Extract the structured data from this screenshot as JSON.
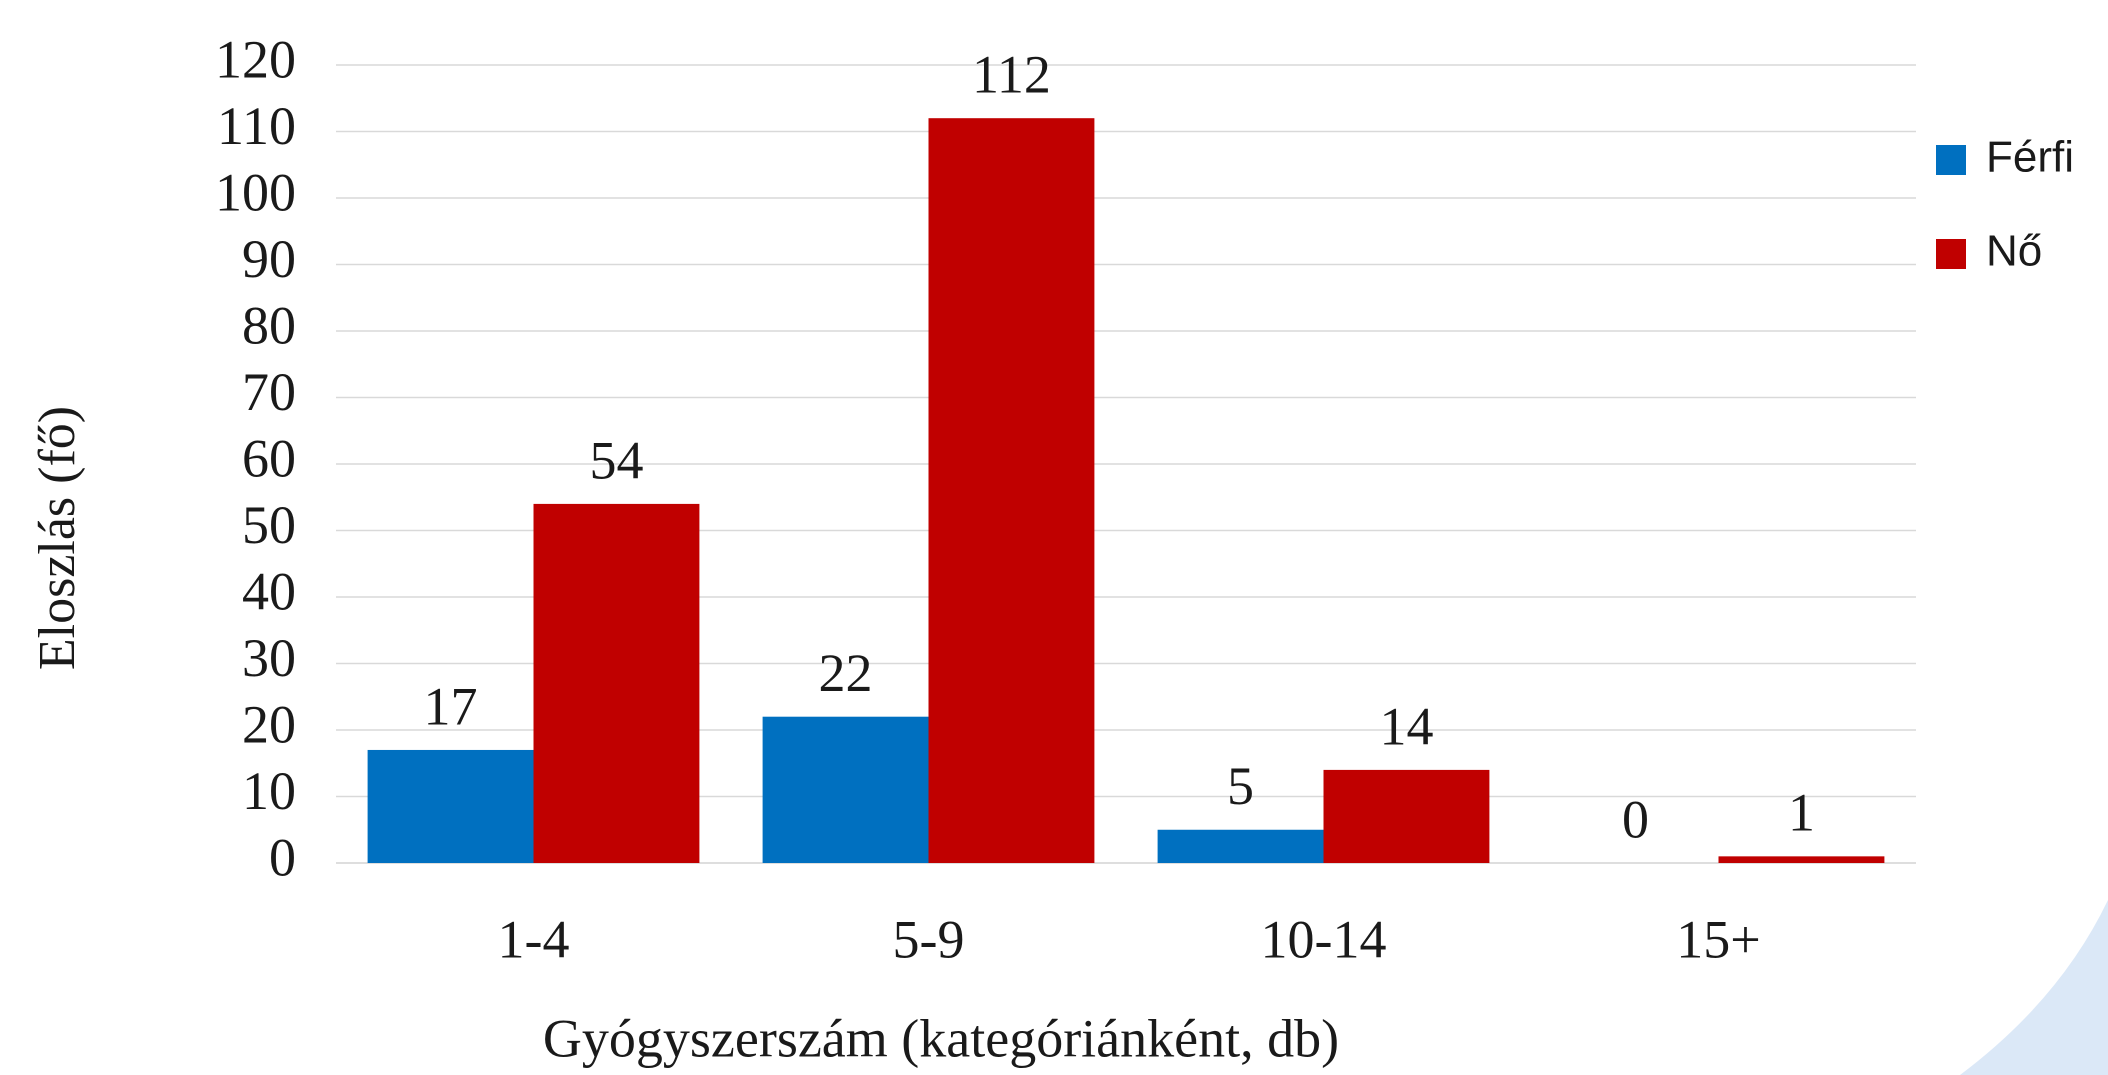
{
  "chart_data": {
    "type": "bar",
    "xlabel": "Gyógyszerszám (kategóriánként, db)",
    "ylabel": "Eloszlás (fő)",
    "categories": [
      "1-4",
      "5-9",
      "10-14",
      "15+"
    ],
    "series": [
      {
        "name": "Férfi",
        "color": "#0070c0",
        "values": [
          17,
          22,
          5,
          0
        ]
      },
      {
        "name": "Nő",
        "color": "#c00000",
        "values": [
          54,
          112,
          14,
          1
        ]
      }
    ],
    "ylim": [
      0,
      120
    ],
    "yticks": [
      0,
      10,
      20,
      30,
      40,
      50,
      60,
      70,
      80,
      90,
      100,
      110,
      120
    ],
    "grid": true,
    "legend": "right"
  }
}
